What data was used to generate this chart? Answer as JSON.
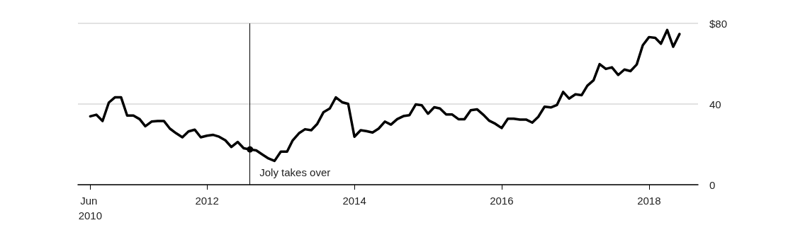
{
  "chart_data": {
    "type": "line",
    "x": [
      "2010-06",
      "2010-07",
      "2010-08",
      "2010-09",
      "2010-10",
      "2010-11",
      "2010-12",
      "2011-01",
      "2011-02",
      "2011-03",
      "2011-04",
      "2011-05",
      "2011-06",
      "2011-07",
      "2011-08",
      "2011-09",
      "2011-10",
      "2011-11",
      "2011-12",
      "2012-01",
      "2012-02",
      "2012-03",
      "2012-04",
      "2012-05",
      "2012-06",
      "2012-07",
      "2012-08",
      "2012-09",
      "2012-10",
      "2012-11",
      "2012-12",
      "2013-01",
      "2013-02",
      "2013-03",
      "2013-04",
      "2013-05",
      "2013-06",
      "2013-07",
      "2013-08",
      "2013-09",
      "2013-10",
      "2013-11",
      "2013-12",
      "2014-01",
      "2014-02",
      "2014-03",
      "2014-04",
      "2014-05",
      "2014-06",
      "2014-07",
      "2014-08",
      "2014-09",
      "2014-10",
      "2014-11",
      "2014-12",
      "2015-01",
      "2015-02",
      "2015-03",
      "2015-04",
      "2015-05",
      "2015-06",
      "2015-07",
      "2015-08",
      "2015-09",
      "2015-10",
      "2015-11",
      "2015-12",
      "2016-01",
      "2016-02",
      "2016-03",
      "2016-04",
      "2016-05",
      "2016-06",
      "2016-07",
      "2016-08",
      "2016-09",
      "2016-10",
      "2016-11",
      "2016-12",
      "2017-01",
      "2017-02",
      "2017-03",
      "2017-04",
      "2017-05",
      "2017-06",
      "2017-07",
      "2017-08",
      "2017-09",
      "2017-10",
      "2017-11",
      "2017-12",
      "2018-01",
      "2018-02",
      "2018-03",
      "2018-04",
      "2018-05",
      "2018-06"
    ],
    "series": [
      {
        "color": "#000000",
        "values": [
          33.9,
          34.7,
          31.6,
          40.7,
          43.3,
          43.3,
          34.3,
          34.3,
          32.5,
          29.0,
          31.3,
          31.6,
          31.6,
          27.8,
          25.5,
          23.5,
          26.4,
          27.3,
          23.5,
          24.3,
          24.7,
          23.8,
          22.0,
          18.7,
          21.2,
          18.1,
          17.5,
          17.0,
          15.0,
          13.0,
          11.8,
          16.4,
          16.4,
          22.0,
          25.5,
          27.5,
          27.0,
          30.2,
          36.0,
          37.8,
          43.3,
          40.9,
          40.1,
          23.8,
          27.0,
          26.6,
          25.9,
          27.8,
          31.3,
          29.8,
          32.5,
          34.0,
          34.5,
          39.8,
          39.4,
          35.2,
          38.4,
          37.8,
          34.8,
          34.8,
          32.5,
          32.5,
          36.9,
          37.4,
          34.8,
          31.7,
          30.2,
          28.1,
          32.7,
          32.7,
          32.3,
          32.3,
          30.8,
          33.7,
          38.7,
          38.3,
          39.5,
          46.0,
          42.7,
          44.8,
          44.4,
          49.1,
          51.8,
          59.8,
          57.4,
          58.2,
          54.4,
          57.1,
          56.3,
          59.6,
          69.1,
          73.2,
          72.8,
          69.9,
          76.7,
          68.4,
          74.7
        ]
      }
    ],
    "xlim": [
      "2010-04-01",
      "2018-09-01"
    ],
    "xticks": [
      {
        "value": "2010-06",
        "label": "Jun 2010"
      },
      {
        "value": "2012-01",
        "label": "2012"
      },
      {
        "value": "2014-01",
        "label": "2014"
      },
      {
        "value": "2016-01",
        "label": "2016"
      },
      {
        "value": "2018-01",
        "label": "2018"
      }
    ],
    "ylim": [
      0,
      80
    ],
    "yticks": [
      0,
      40,
      {
        "value": 80,
        "label": "$80"
      }
    ],
    "grid": "y",
    "marker": "none",
    "line_style": "solid",
    "ref_lines": [
      {
        "axis": "x",
        "value": "2012-08",
        "color": "#000000"
      }
    ],
    "annotations": [
      {
        "text": "Joly takes over",
        "x": "2012-08",
        "y": 17.5
      }
    ]
  }
}
